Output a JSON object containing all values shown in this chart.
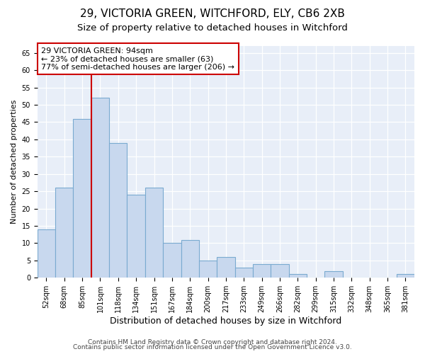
{
  "title1": "29, VICTORIA GREEN, WITCHFORD, ELY, CB6 2XB",
  "title2": "Size of property relative to detached houses in Witchford",
  "xlabel": "Distribution of detached houses by size in Witchford",
  "ylabel": "Number of detached properties",
  "categories": [
    "52sqm",
    "68sqm",
    "85sqm",
    "101sqm",
    "118sqm",
    "134sqm",
    "151sqm",
    "167sqm",
    "184sqm",
    "200sqm",
    "217sqm",
    "233sqm",
    "249sqm",
    "266sqm",
    "282sqm",
    "299sqm",
    "315sqm",
    "332sqm",
    "348sqm",
    "365sqm",
    "381sqm"
  ],
  "values": [
    14,
    26,
    46,
    52,
    39,
    24,
    26,
    10,
    11,
    5,
    6,
    3,
    4,
    4,
    1,
    0,
    2,
    0,
    0,
    0,
    1
  ],
  "bar_color": "#c8d8ee",
  "bar_edge_color": "#7aaad0",
  "vline_x_index": 3,
  "vline_color": "#cc0000",
  "annotation_text": "29 VICTORIA GREEN: 94sqm\n← 23% of detached houses are smaller (63)\n77% of semi-detached houses are larger (206) →",
  "annotation_box_color": "white",
  "annotation_box_edge": "#cc0000",
  "ylim": [
    0,
    67
  ],
  "yticks": [
    0,
    5,
    10,
    15,
    20,
    25,
    30,
    35,
    40,
    45,
    50,
    55,
    60,
    65
  ],
  "footer1": "Contains HM Land Registry data © Crown copyright and database right 2024.",
  "footer2": "Contains public sector information licensed under the Open Government Licence v3.0.",
  "bg_color": "#ffffff",
  "plot_bg_color": "#e8eef8",
  "grid_color": "#ffffff",
  "title1_fontsize": 11,
  "title2_fontsize": 9.5,
  "xlabel_fontsize": 9,
  "ylabel_fontsize": 8,
  "tick_fontsize": 7,
  "annot_fontsize": 8,
  "footer_fontsize": 6.5
}
